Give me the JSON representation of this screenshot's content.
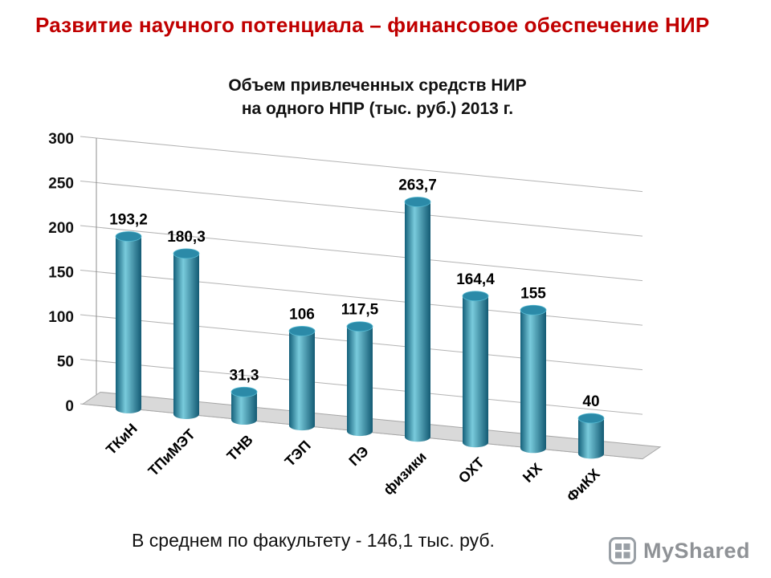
{
  "page": {
    "main_title": "Развитие научного потенциала – финансовое обеспечение НИР",
    "footer_note": "В среднем по факультету - 146,1 тыс. руб.",
    "watermark": "MyShared",
    "title_color": "#c00000"
  },
  "chart_data": {
    "type": "bar",
    "style": "3d-cylinder",
    "title": "Объем привлеченных средств НИР на одного НПР (тыс. руб.) 2013 г.",
    "title_line1": "Объем привлеченных средств НИР",
    "title_line2": "на одного НПР (тыс. руб.) 2013 г.",
    "categories": [
      "ТКиН",
      "ТПиМЭТ",
      "ТНВ",
      "ТЭП",
      "ПЭ",
      "физики",
      "ОХТ",
      "НХ",
      "ФиКХ"
    ],
    "values": [
      193.2,
      180.3,
      31.3,
      106,
      117.5,
      263.7,
      164.4,
      155,
      40
    ],
    "value_labels": [
      "193,2",
      "180,3",
      "31,3",
      "106",
      "117,5",
      "263,7",
      "164,4",
      "155",
      "40"
    ],
    "xlabel": "",
    "ylabel": "",
    "ylim": [
      0,
      300
    ],
    "ytick_step": 50,
    "yticks": [
      0,
      50,
      100,
      150,
      200,
      250,
      300
    ],
    "grid": true,
    "legend": "none",
    "bar_color": "#2e8fae",
    "grid_color": "#b3b3b3",
    "floor_color": "#d9d9d9"
  }
}
